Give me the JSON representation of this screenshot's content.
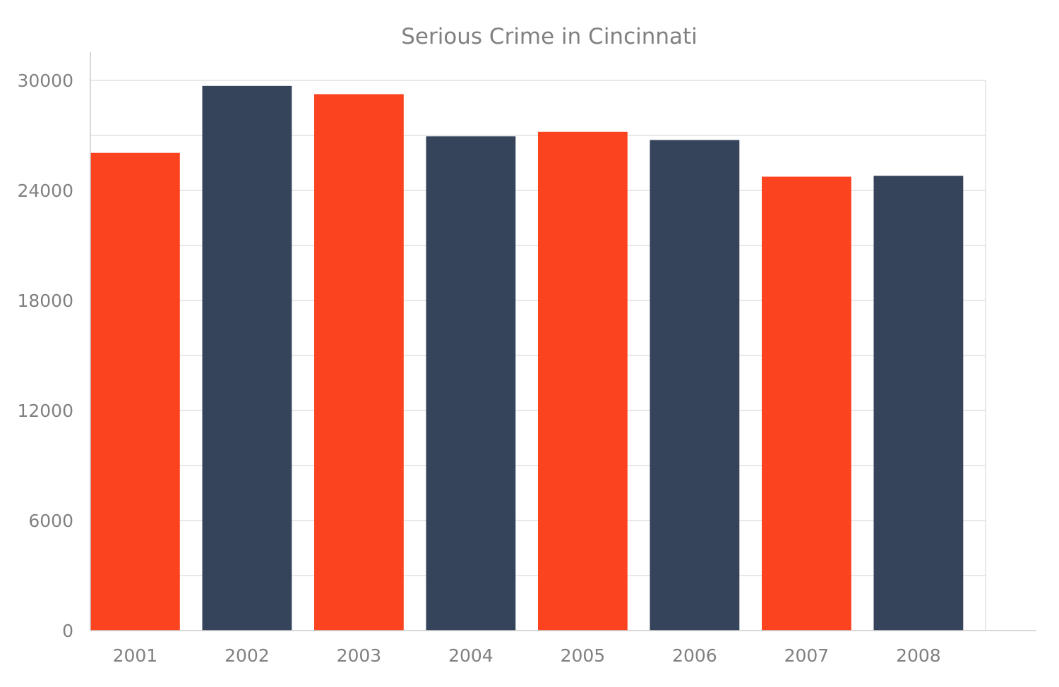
{
  "chart_data": {
    "type": "bar",
    "title": "Serious Crime in Cincinnati",
    "categories": [
      "2001",
      "2002",
      "2003",
      "2004",
      "2005",
      "2006",
      "2007",
      "2008"
    ],
    "values": [
      26050,
      29700,
      29250,
      26950,
      27200,
      26750,
      24750,
      24800
    ],
    "ylim": [
      0,
      30000
    ],
    "yticks": [
      0,
      6000,
      12000,
      18000,
      24000,
      30000
    ],
    "ytick_labels": [
      "0",
      "6000",
      "12000",
      "18000",
      "24000",
      "30000"
    ],
    "minor_grid_step": 3000,
    "grid": true,
    "legend": "none",
    "bar_colors": [
      "#FC4320",
      "#35445B",
      "#FC4320",
      "#35445B",
      "#FC4320",
      "#35445B",
      "#FC4320",
      "#35445B"
    ]
  }
}
